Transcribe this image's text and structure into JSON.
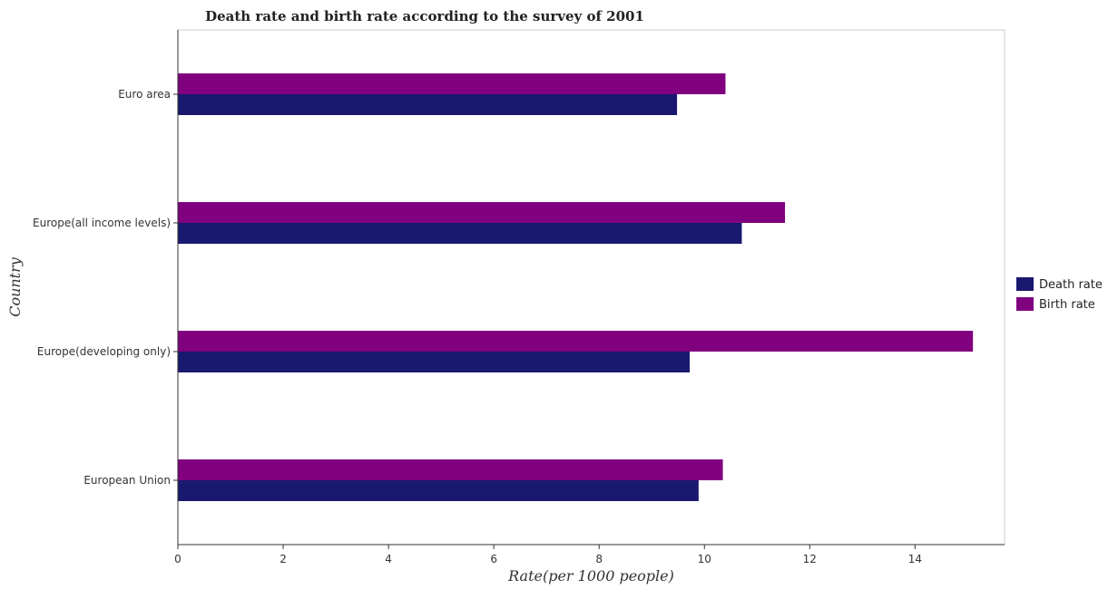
{
  "chart_data": {
    "type": "bar",
    "orientation": "horizontal",
    "title": "Death rate and birth rate according to the survey of 2001",
    "xlabel": "Rate(per 1000 people)",
    "ylabel": "Country",
    "categories": [
      "Euro area",
      "Europe(all income levels)",
      "Europe(developing only)",
      "European Union"
    ],
    "series": [
      {
        "name": "Death rate",
        "color": "#191970",
        "values": [
          9.48,
          10.71,
          9.72,
          9.89
        ]
      },
      {
        "name": "Birth rate",
        "color": "#800080",
        "values": [
          10.4,
          11.53,
          15.1,
          10.35
        ]
      }
    ],
    "xlim": [
      0,
      15.7
    ],
    "xticks": [
      0,
      2,
      4,
      6,
      8,
      10,
      12,
      14
    ],
    "grid": false,
    "legend_position": "right"
  }
}
